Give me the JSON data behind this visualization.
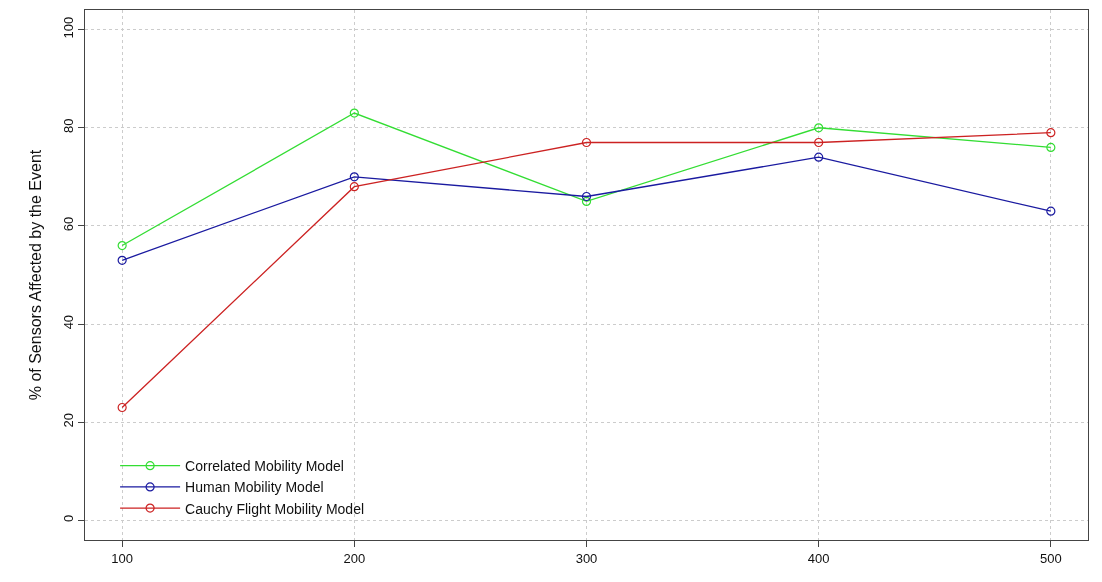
{
  "chart_data": {
    "type": "line",
    "ylabel": "% of Sensors Affected by the Event",
    "x": [
      100,
      200,
      300,
      400,
      500
    ],
    "series": [
      {
        "name": "Correlated Mobility Model",
        "color": "#33dd33",
        "values": [
          56,
          83,
          65,
          80,
          76
        ]
      },
      {
        "name": "Human Mobility Model",
        "color": "#1a1aa0",
        "values": [
          53,
          70,
          66,
          74,
          63
        ]
      },
      {
        "name": "Cauchy Flight Mobility Model",
        "color": "#cc2222",
        "values": [
          23,
          68,
          77,
          77,
          79
        ]
      }
    ],
    "xlim": [
      84,
      516
    ],
    "ylim": [
      -4,
      104
    ],
    "xticks": [
      100,
      200,
      300,
      400,
      500
    ],
    "yticks": [
      0,
      20,
      40,
      60,
      80,
      100
    ],
    "grid": true,
    "legend": "bottom left",
    "marker": "circle",
    "line_style": "solid"
  }
}
